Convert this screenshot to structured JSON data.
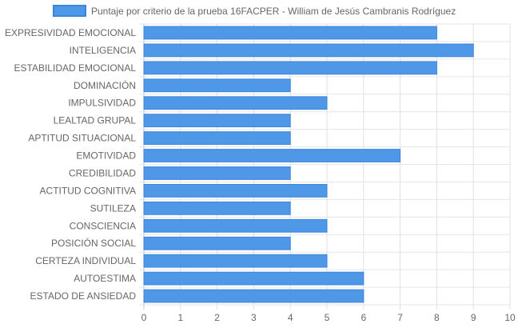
{
  "chart_data": {
    "type": "bar",
    "orientation": "horizontal",
    "categories": [
      "EXPRESIVIDAD EMOCIONAL",
      "INTELIGENCIA",
      "ESTABILIDAD EMOCIONAL",
      "DOMINACIÓN",
      "IMPULSIVIDAD",
      "LEALTAD GRUPAL",
      "APTITUD SITUACIONAL",
      "EMOTIVIDAD",
      "CREDIBILIDAD",
      "ACTITUD COGNITIVA",
      "SUTILEZA",
      "CONSCIENCIA",
      "POSICIÓN SOCIAL",
      "CERTEZA INDIVIDUAL",
      "AUTOESTIMA",
      "ESTADO DE ANSIEDAD"
    ],
    "series": [
      {
        "name": "Puntaje por criterio de la prueba 16FACPER - William de Jesús Cambranis Rodríguez",
        "values": [
          8,
          9,
          8,
          4,
          5,
          4,
          4,
          7,
          4,
          5,
          4,
          5,
          4,
          5,
          6,
          6
        ],
        "color": "#4f98e8",
        "border_color": "#3a85de"
      }
    ],
    "xlim": [
      0,
      10
    ],
    "x_ticks": [
      "0",
      "1",
      "2",
      "3",
      "4",
      "5",
      "6",
      "7",
      "8",
      "9",
      "10"
    ],
    "grid": true,
    "legend_position": "top"
  }
}
